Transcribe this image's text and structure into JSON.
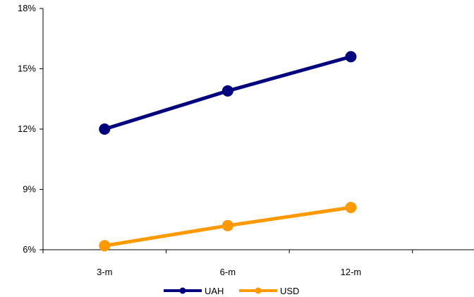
{
  "chart_data": {
    "type": "line",
    "title": "",
    "xlabel": "",
    "ylabel": "",
    "categories": [
      "3-m",
      "6-m",
      "12-m"
    ],
    "ylim": [
      6,
      18
    ],
    "yticks": [
      6,
      9,
      12,
      15,
      18
    ],
    "ytick_labels": [
      "6%",
      "9%",
      "12%",
      "15%",
      "18%"
    ],
    "grid": false,
    "legend_position": "bottom",
    "series": [
      {
        "name": "UAH",
        "values": [
          12.0,
          13.9,
          15.6
        ],
        "color": "#00007f"
      },
      {
        "name": "USD",
        "values": [
          6.2,
          7.2,
          8.1
        ],
        "color": "#ff9900"
      }
    ]
  }
}
